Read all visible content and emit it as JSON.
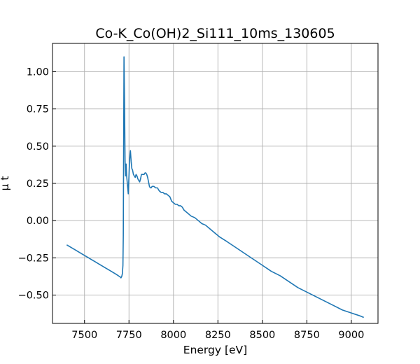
{
  "chart_data": {
    "type": "line",
    "title": "Co-K_Co(OH)2_Si111_10ms_130605",
    "xlabel": "Energy [eV]",
    "ylabel": "μ t",
    "xlim": [
      7320,
      9150
    ],
    "ylim": [
      -0.69,
      1.19
    ],
    "grid": true,
    "legend": "none",
    "x_ticks": [
      7500,
      7750,
      8000,
      8250,
      8500,
      8750,
      9000
    ],
    "x_tick_labels": [
      "7500",
      "7750",
      "8000",
      "8250",
      "8500",
      "8750",
      "9000"
    ],
    "y_ticks": [
      -0.5,
      -0.25,
      0.0,
      0.25,
      0.5,
      0.75,
      1.0
    ],
    "y_tick_labels": [
      "−0.50",
      "−0.25",
      "0.00",
      "0.25",
      "0.50",
      "0.75",
      "1.00"
    ],
    "series": [
      {
        "color": "#1f77b4",
        "x": [
          7400,
          7450,
          7500,
          7550,
          7600,
          7650,
          7680,
          7700,
          7705,
          7710,
          7713,
          7716,
          7718,
          7720,
          7722,
          7725,
          7728,
          7731,
          7734,
          7737,
          7740,
          7743,
          7746,
          7750,
          7754,
          7758,
          7762,
          7766,
          7770,
          7775,
          7780,
          7785,
          7790,
          7795,
          7800,
          7805,
          7810,
          7815,
          7820,
          7825,
          7830,
          7835,
          7840,
          7845,
          7850,
          7855,
          7860,
          7865,
          7870,
          7875,
          7880,
          7890,
          7900,
          7910,
          7920,
          7930,
          7940,
          7950,
          7960,
          7970,
          7980,
          7990,
          8000,
          8010,
          8020,
          8030,
          8040,
          8050,
          8060,
          8080,
          8100,
          8120,
          8140,
          8160,
          8180,
          8200,
          8220,
          8240,
          8260,
          8300,
          8350,
          8400,
          8450,
          8500,
          8550,
          8600,
          8650,
          8700,
          8750,
          8800,
          8850,
          8900,
          8950,
          9000,
          9050,
          9070
        ],
        "y": [
          -0.163,
          -0.198,
          -0.234,
          -0.269,
          -0.305,
          -0.34,
          -0.362,
          -0.378,
          -0.384,
          -0.372,
          -0.355,
          -0.3,
          -0.1,
          0.5,
          1.1,
          0.8,
          0.4,
          0.3,
          0.38,
          0.3,
          0.26,
          0.22,
          0.18,
          0.3,
          0.42,
          0.47,
          0.4,
          0.35,
          0.34,
          0.31,
          0.3,
          0.29,
          0.31,
          0.3,
          0.28,
          0.27,
          0.26,
          0.28,
          0.31,
          0.31,
          0.31,
          0.31,
          0.32,
          0.32,
          0.31,
          0.29,
          0.26,
          0.23,
          0.22,
          0.22,
          0.23,
          0.23,
          0.22,
          0.22,
          0.2,
          0.19,
          0.19,
          0.18,
          0.18,
          0.17,
          0.16,
          0.13,
          0.12,
          0.11,
          0.11,
          0.1,
          0.1,
          0.09,
          0.07,
          0.05,
          0.03,
          0.02,
          0.0,
          -0.02,
          -0.03,
          -0.05,
          -0.07,
          -0.09,
          -0.11,
          -0.14,
          -0.18,
          -0.22,
          -0.26,
          -0.3,
          -0.34,
          -0.37,
          -0.41,
          -0.45,
          -0.48,
          -0.51,
          -0.54,
          -0.57,
          -0.6,
          -0.62,
          -0.64,
          -0.65
        ]
      }
    ]
  }
}
